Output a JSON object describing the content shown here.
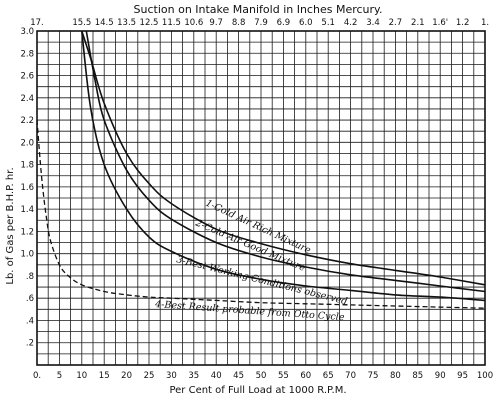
{
  "chart_data": {
    "type": "line",
    "title": "Suction on Intake Manifold in Inches Mercury.",
    "xlabel": "Per Cent of Full Load at 1000 R.P.M.",
    "ylabel": "Lb. of Gas per B.H.P. hr.",
    "xlim": [
      0,
      100
    ],
    "ylim": [
      0,
      3.0
    ],
    "grid": true,
    "x_ticks": [
      "0.",
      "5",
      "10",
      "15",
      "20",
      "25",
      "30",
      "35",
      "40",
      "45",
      "50",
      "55",
      "60",
      "65",
      "70",
      "75",
      "80",
      "85",
      "90",
      "95",
      "100"
    ],
    "y_ticks": [
      ".2",
      ".4",
      ".6",
      ".8",
      "1.0",
      "1.2",
      "1.4",
      "1.6",
      "1.8",
      "2.0",
      "2.2",
      "2.4",
      "2.6",
      "2.8",
      "3.0"
    ],
    "top_ticks": [
      {
        "x": 0,
        "label": "17."
      },
      {
        "x": 10,
        "label": "15.5"
      },
      {
        "x": 15,
        "label": "14.5"
      },
      {
        "x": 20,
        "label": "13.5"
      },
      {
        "x": 25,
        "label": "12.5"
      },
      {
        "x": 30,
        "label": "11.5"
      },
      {
        "x": 35,
        "label": "10.6"
      },
      {
        "x": 40,
        "label": "9.7"
      },
      {
        "x": 45,
        "label": "8.8"
      },
      {
        "x": 50,
        "label": "7.9"
      },
      {
        "x": 55,
        "label": "6.9"
      },
      {
        "x": 60,
        "label": "6.0"
      },
      {
        "x": 65,
        "label": "5.1"
      },
      {
        "x": 70,
        "label": "4.2"
      },
      {
        "x": 75,
        "label": "3.4"
      },
      {
        "x": 80,
        "label": "2.7"
      },
      {
        "x": 85,
        "label": "2.1"
      },
      {
        "x": 90,
        "label": "1.6'"
      },
      {
        "x": 95,
        "label": "1.2"
      },
      {
        "x": 100,
        "label": "1."
      }
    ],
    "series": [
      {
        "name": "1-Cold Air Rich Mixture",
        "style": "solid",
        "x": [
          10,
          12,
          15,
          20,
          25,
          30,
          40,
          50,
          60,
          70,
          80,
          90,
          100
        ],
        "y": [
          3.0,
          2.75,
          2.35,
          1.9,
          1.63,
          1.45,
          1.22,
          1.09,
          0.99,
          0.91,
          0.85,
          0.79,
          0.72
        ]
      },
      {
        "name": "2-Cold Air Good Mixture",
        "style": "solid",
        "x": [
          11,
          13,
          15,
          20,
          25,
          30,
          40,
          50,
          60,
          70,
          80,
          90,
          100
        ],
        "y": [
          3.0,
          2.55,
          2.2,
          1.75,
          1.48,
          1.31,
          1.1,
          0.97,
          0.88,
          0.81,
          0.76,
          0.71,
          0.66
        ]
      },
      {
        "name": "3-Best Working Conditions observed",
        "style": "solid",
        "x": [
          10,
          12,
          15,
          20,
          25,
          30,
          40,
          50,
          60,
          70,
          80,
          90,
          100
        ],
        "y": [
          3.0,
          2.3,
          1.8,
          1.4,
          1.15,
          1.02,
          0.86,
          0.77,
          0.71,
          0.67,
          0.63,
          0.61,
          0.58
        ]
      },
      {
        "name": "4-Best Result probable from Otto Cycle",
        "style": "dashed",
        "x": [
          0,
          1,
          2,
          3,
          5,
          7,
          10,
          15,
          20,
          25,
          30,
          40,
          50,
          60,
          70,
          80,
          90,
          100
        ],
        "y": [
          2.2,
          1.7,
          1.35,
          1.12,
          0.9,
          0.8,
          0.72,
          0.66,
          0.63,
          0.61,
          0.6,
          0.58,
          0.56,
          0.55,
          0.54,
          0.53,
          0.52,
          0.51
        ]
      }
    ],
    "annotations": [
      "1-Cold Air Rich Mixture",
      "2-Cold Air Good Mixture",
      "3-Best Working Conditions observed",
      "4-Best Result probable from Otto Cycle"
    ]
  }
}
